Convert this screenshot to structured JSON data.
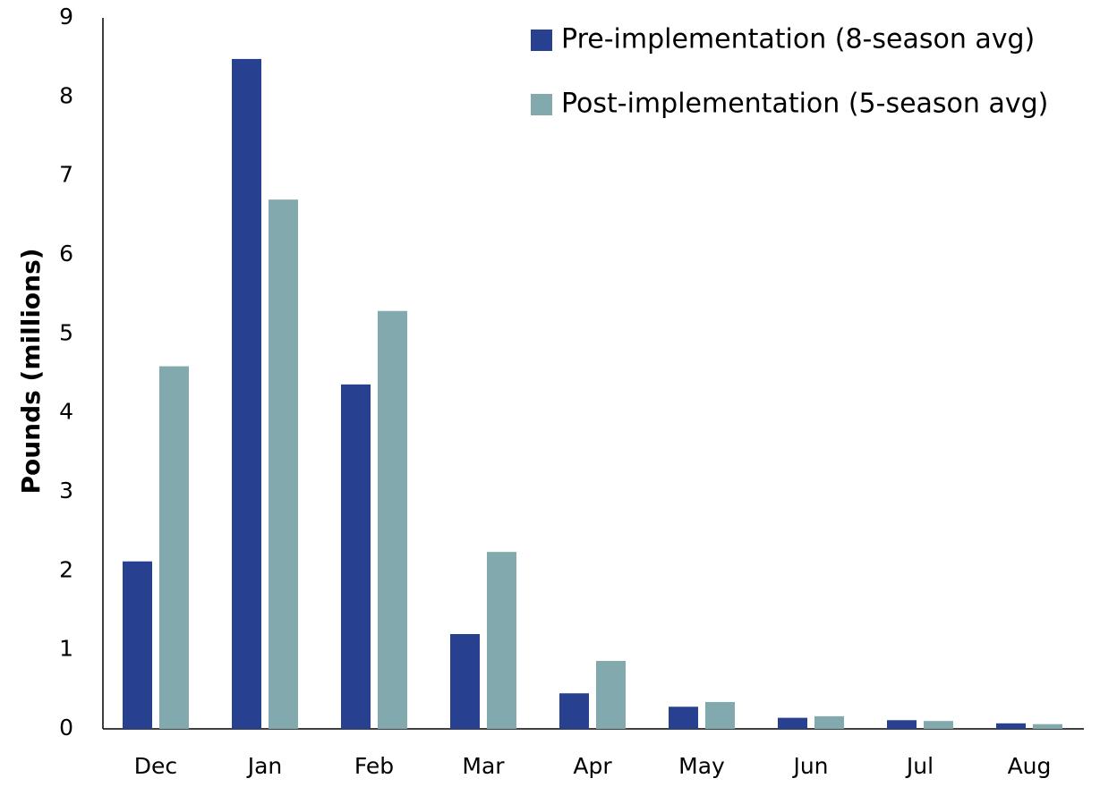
{
  "chart_data": {
    "type": "bar",
    "y_label": "Pounds (millions)",
    "categories": [
      "Dec",
      "Jan",
      "Feb",
      "Mar",
      "Apr",
      "May",
      "Jun",
      "Jul",
      "Aug"
    ],
    "series": [
      {
        "name": "Pre-implementation (8-season avg)",
        "color": "#27408f",
        "values": [
          2.12,
          8.48,
          4.36,
          1.2,
          0.45,
          0.28,
          0.14,
          0.11,
          0.07
        ]
      },
      {
        "name": "Post-implementation (5-season avg)",
        "color": "#82aaae",
        "values": [
          4.59,
          6.7,
          5.29,
          2.24,
          0.86,
          0.34,
          0.16,
          0.1,
          0.06
        ]
      }
    ],
    "ylim": [
      0,
      9
    ],
    "yticks": [
      0,
      1,
      2,
      3,
      4,
      5,
      6,
      7,
      8,
      9
    ],
    "grid": false,
    "legend": "upper right"
  }
}
